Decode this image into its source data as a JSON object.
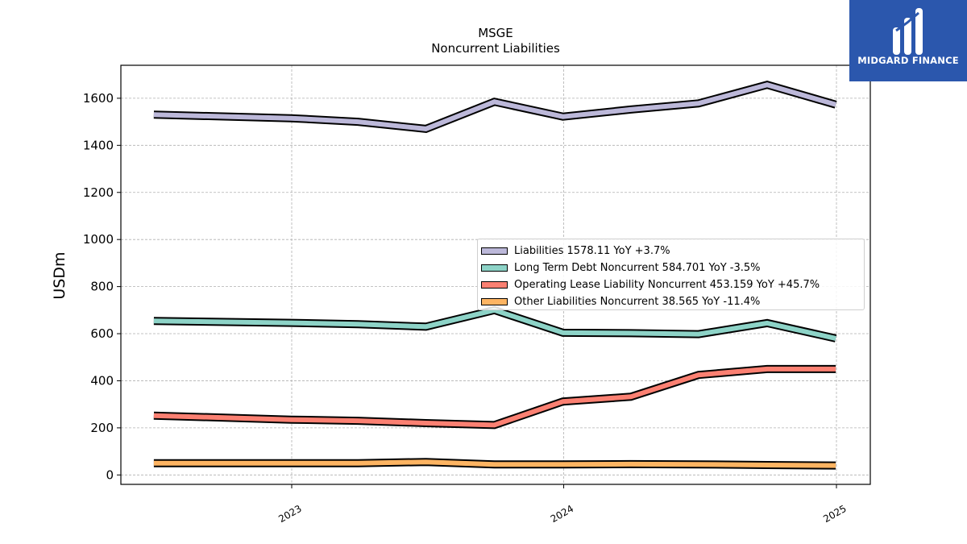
{
  "brand": {
    "name": "MIDGARD FINANCE",
    "bg_color": "#2b57ad"
  },
  "chart_data": {
    "type": "line",
    "title": "MSGE",
    "subtitle": "Noncurrent  Liabilities",
    "ylabel": "USDm",
    "xlabel": "",
    "x_ticks": [
      "2023",
      "2024",
      "2025"
    ],
    "y_ticks": [
      0,
      200,
      400,
      600,
      800,
      1000,
      1200,
      1400,
      1600
    ],
    "ylim": [
      -40,
      1740
    ],
    "grid": true,
    "legend_position": "center-right",
    "x": [
      "2022-06-30",
      "2022-12-31",
      "2023-03-31",
      "2023-06-30",
      "2023-09-30",
      "2023-12-31",
      "2024-03-31",
      "2024-06-30",
      "2024-09-30",
      "2024-12-31"
    ],
    "series": [
      {
        "name": "Liabilities",
        "legend_label": "Liabilities  1578.11 YoY +3.7%",
        "color": "#bcb8d9",
        "values": [
          1530,
          1515,
          1500,
          1470,
          1585,
          1522,
          1552,
          1578,
          1657,
          1573
        ]
      },
      {
        "name": "Long Term Debt Noncurrent",
        "legend_label": "Long Term Debt Noncurrent  584.701 YoY -3.5%",
        "color": "#8dd3c7",
        "values": [
          654,
          646,
          640,
          630,
          700,
          604,
          602,
          598,
          645,
          580
        ]
      },
      {
        "name": "Operating Lease Liability Noncurrent",
        "legend_label": "Operating Lease Liability Noncurrent  453.159 YoY +45.7%",
        "color": "#fb8072",
        "values": [
          252,
          235,
          230,
          220,
          212,
          312,
          332,
          425,
          450,
          450
        ]
      },
      {
        "name": "Other Liabilities Noncurrent",
        "legend_label": "Other Liabilities Noncurrent  38.565 YoY -11.4%",
        "color": "#fdb462",
        "values": [
          50,
          50,
          50,
          55,
          45,
          45,
          46,
          45,
          42,
          40
        ]
      }
    ]
  }
}
